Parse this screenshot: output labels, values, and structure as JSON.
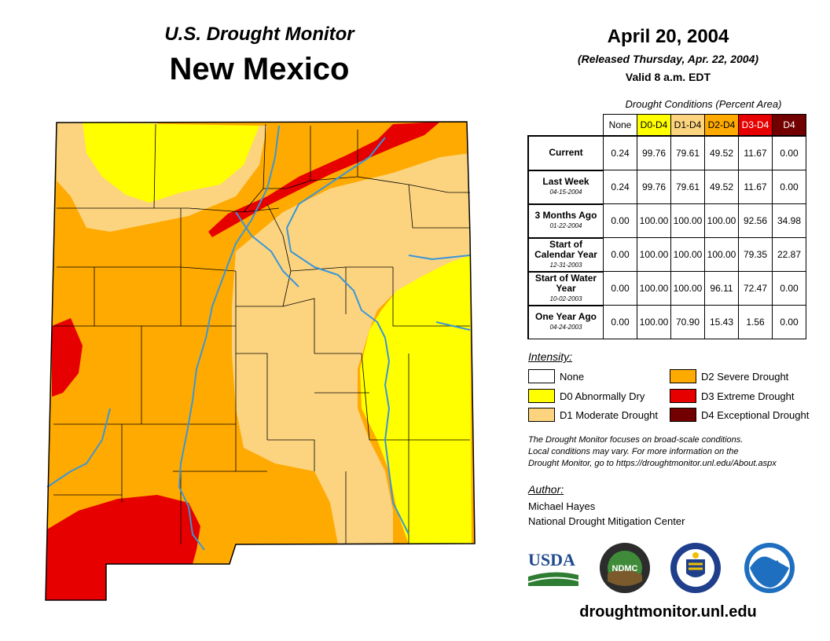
{
  "header": {
    "subtitle": "U.S. Drought Monitor",
    "state": "New Mexico",
    "date": "April 20, 2004",
    "released": "(Released Thursday, Apr. 22, 2004)",
    "valid": "Valid 8 a.m. EDT"
  },
  "conditions": {
    "title": "Drought Conditions (Percent Area)",
    "columns": [
      "None",
      "D0-D4",
      "D1-D4",
      "D2-D4",
      "D3-D4",
      "D4"
    ],
    "column_colors": [
      "#ffffff",
      "#ffff00",
      "#fcd37f",
      "#ffaa00",
      "#e60000",
      "#730000"
    ],
    "rows": [
      {
        "label": "Current",
        "date": "",
        "values": [
          "0.24",
          "99.76",
          "79.61",
          "49.52",
          "11.67",
          "0.00"
        ]
      },
      {
        "label": "Last Week",
        "date": "04-15-2004",
        "values": [
          "0.24",
          "99.76",
          "79.61",
          "49.52",
          "11.67",
          "0.00"
        ]
      },
      {
        "label": "3 Months Ago",
        "date": "01-22-2004",
        "values": [
          "0.00",
          "100.00",
          "100.00",
          "100.00",
          "92.56",
          "34.98"
        ]
      },
      {
        "label": "Start of Calendar Year",
        "date": "12-31-2003",
        "values": [
          "0.00",
          "100.00",
          "100.00",
          "100.00",
          "79.35",
          "22.87"
        ]
      },
      {
        "label": "Start of Water Year",
        "date": "10-02-2003",
        "values": [
          "0.00",
          "100.00",
          "100.00",
          "96.11",
          "72.47",
          "0.00"
        ]
      },
      {
        "label": "One Year Ago",
        "date": "04-24-2003",
        "values": [
          "0.00",
          "100.00",
          "70.90",
          "15.43",
          "1.56",
          "0.00"
        ]
      }
    ]
  },
  "legend": {
    "title": "Intensity:",
    "items": [
      {
        "label": "None",
        "color": "#ffffff"
      },
      {
        "label": "D0 Abnormally Dry",
        "color": "#ffff00"
      },
      {
        "label": "D1 Moderate Drought",
        "color": "#fcd37f"
      },
      {
        "label": "D2 Severe Drought",
        "color": "#ffaa00"
      },
      {
        "label": "D3 Extreme Drought",
        "color": "#e60000"
      },
      {
        "label": "D4 Exceptional Drought",
        "color": "#730000"
      }
    ]
  },
  "note": {
    "line1": "The Drought Monitor focuses on broad-scale conditions.",
    "line2": "Local conditions may vary. For more information on the",
    "line3": "Drought Monitor, go to https://droughtmonitor.unl.edu/About.aspx"
  },
  "author": {
    "title": "Author:",
    "name": "Michael Hayes",
    "org": "National Drought Mitigation Center"
  },
  "logos": {
    "usda": "USDA",
    "ndmc": "NDMC",
    "noaa": "NOAA"
  },
  "url": "droughtmonitor.unl.edu",
  "colors": {
    "d0": "#ffff00",
    "d1": "#fcd37f",
    "d2": "#ffaa00",
    "d3": "#e60000",
    "d4": "#730000",
    "river": "#3a96d8"
  }
}
